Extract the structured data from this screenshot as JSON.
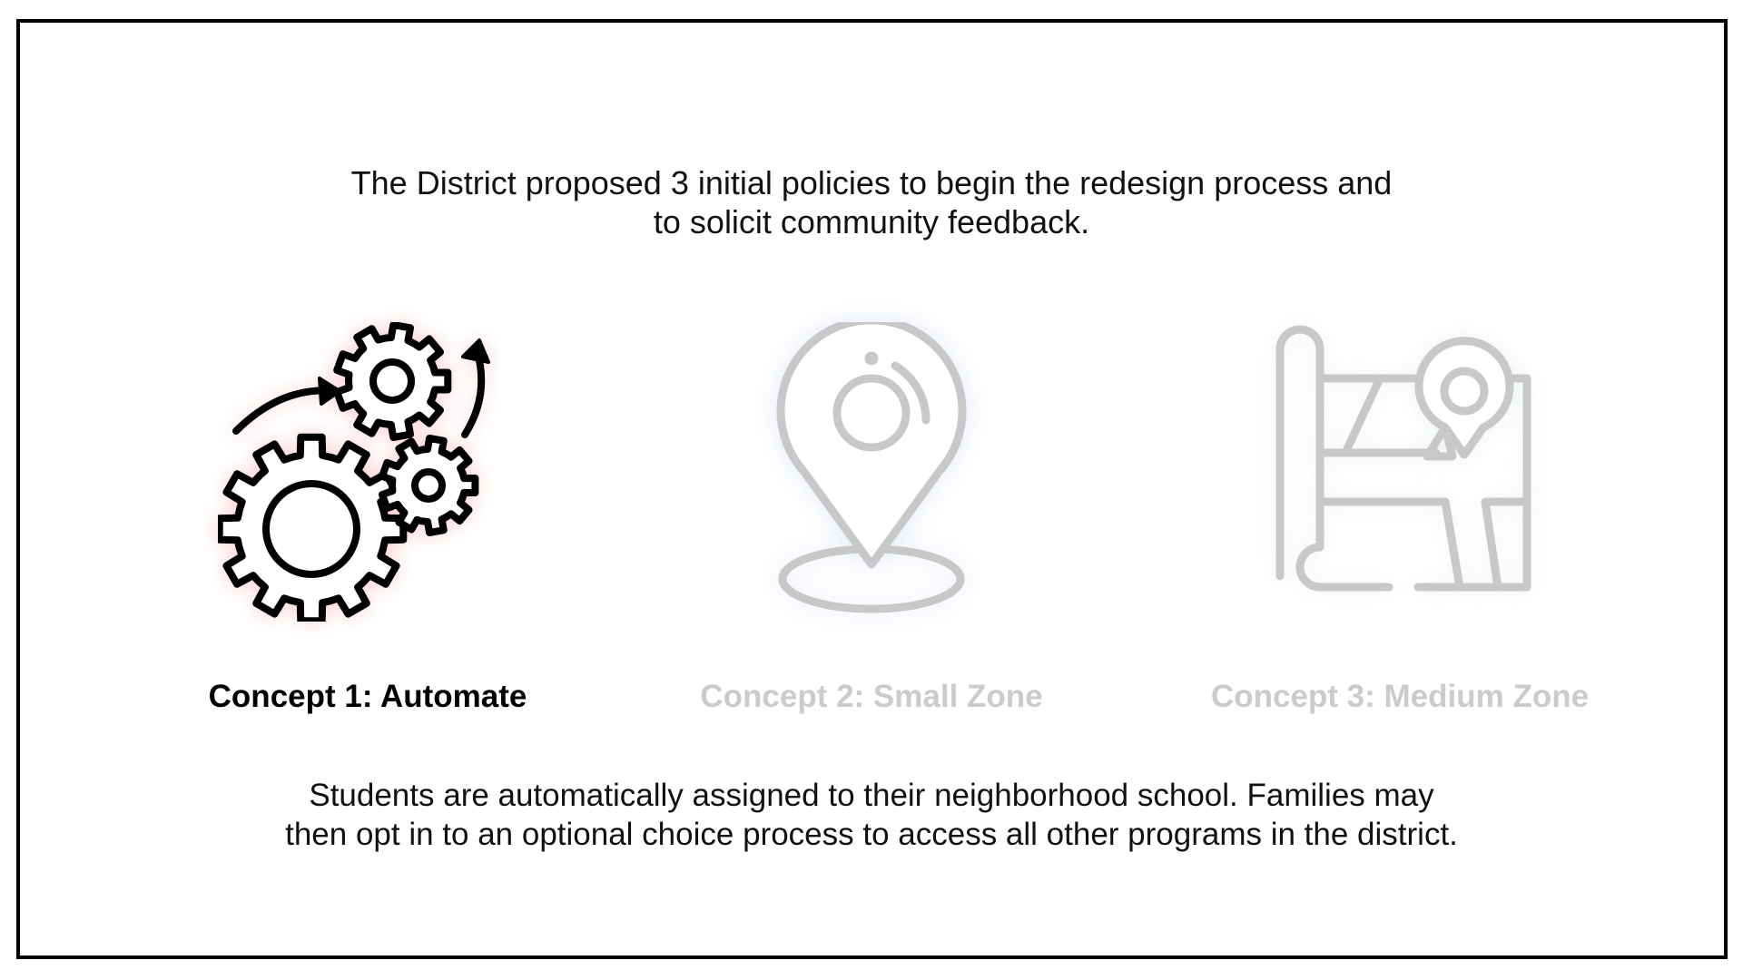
{
  "intro": {
    "line1": "The District proposed 3 initial policies to begin the redesign process and",
    "line2": "to solicit community feedback."
  },
  "concepts": [
    {
      "label": "Concept 1: Automate",
      "icon": "gears-icon",
      "state": "active"
    },
    {
      "label": "Concept 2: Small Zone",
      "icon": "location-pin-icon",
      "state": "inactive"
    },
    {
      "label": "Concept 3: Medium Zone",
      "icon": "map-icon",
      "state": "inactive"
    }
  ],
  "description": {
    "line1": "Students are automatically assigned to their neighborhood school. Families may",
    "line2": "then opt in to an optional choice process to access all other programs in the district."
  },
  "colors": {
    "active_text": "#000000",
    "inactive_text": "#cbcbcb",
    "inactive_icon": "#c8c8c8",
    "frame_border": "#000000"
  }
}
